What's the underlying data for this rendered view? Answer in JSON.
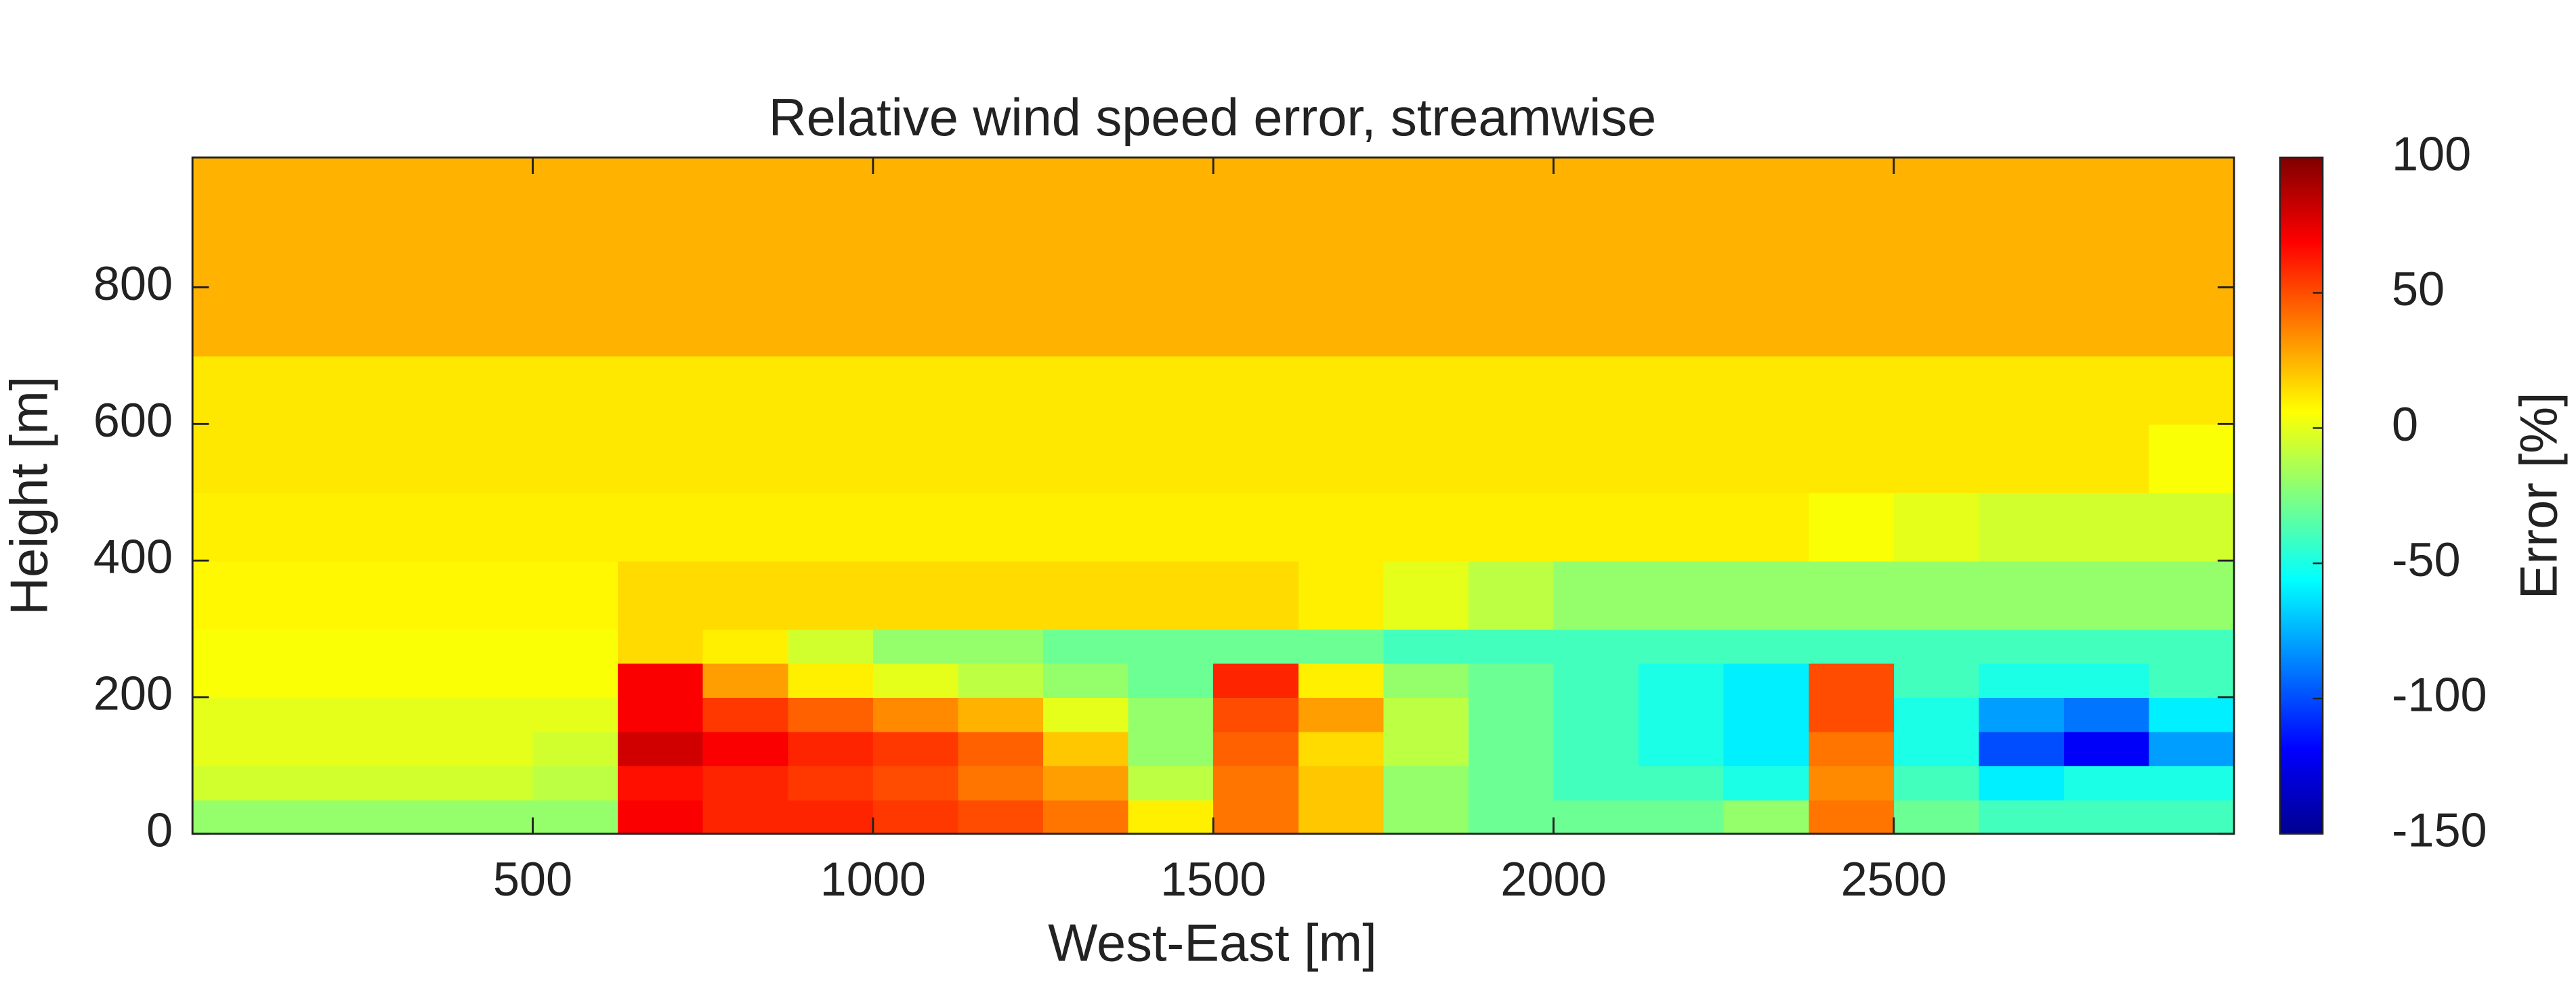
{
  "chart_data": {
    "type": "heatmap",
    "title": "Relative wind speed error, streamwise",
    "x_label": "West-East [m]",
    "y_label": "Height [m]",
    "xlim": [
      0,
      3000
    ],
    "ylim": [
      0,
      990
    ],
    "xticks": [
      500,
      1000,
      1500,
      2000,
      2500
    ],
    "yticks": [
      0,
      200,
      400,
      600,
      800
    ],
    "x_edges": [
      0,
      125,
      250,
      375,
      500,
      625,
      750,
      875,
      1000,
      1125,
      1250,
      1375,
      1500,
      1625,
      1750,
      1875,
      2000,
      2125,
      2250,
      2375,
      2500,
      2625,
      2750,
      2875,
      3000
    ],
    "y_edges": [
      0,
      50,
      100,
      150,
      200,
      250,
      300,
      400,
      500,
      600,
      700,
      800,
      990
    ],
    "z": [
      [
        -20,
        -20,
        -20,
        -20,
        -20,
        70,
        60,
        60,
        55,
        50,
        40,
        10,
        40,
        20,
        -20,
        -30,
        -30,
        -30,
        -20,
        40,
        -30,
        -40,
        -40,
        -40
      ],
      [
        -5,
        -5,
        -5,
        -5,
        -10,
        65,
        60,
        55,
        50,
        40,
        30,
        -10,
        40,
        20,
        -20,
        -30,
        -40,
        -40,
        -50,
        35,
        -40,
        -60,
        -50,
        -50
      ],
      [
        0,
        0,
        0,
        0,
        -5,
        80,
        70,
        60,
        55,
        45,
        20,
        -20,
        45,
        15,
        -10,
        -30,
        -40,
        -50,
        -60,
        40,
        -50,
        -100,
        -120,
        -80
      ],
      [
        0,
        0,
        0,
        0,
        0,
        70,
        55,
        45,
        35,
        25,
        0,
        -20,
        50,
        30,
        -10,
        -30,
        -40,
        -50,
        -60,
        50,
        -50,
        -80,
        -90,
        -60
      ],
      [
        5,
        5,
        5,
        5,
        5,
        70,
        30,
        10,
        0,
        -10,
        -20,
        -30,
        60,
        10,
        -20,
        -30,
        -40,
        -50,
        -60,
        50,
        -40,
        -50,
        -50,
        -40
      ],
      [
        5,
        5,
        5,
        5,
        5,
        15,
        10,
        -5,
        -20,
        -20,
        -30,
        -30,
        -30,
        -30,
        -40,
        -40,
        -40,
        -40,
        -40,
        -40,
        -40,
        -40,
        -40,
        -40
      ],
      [
        8,
        8,
        8,
        8,
        8,
        15,
        15,
        15,
        15,
        15,
        15,
        15,
        15,
        10,
        0,
        -10,
        -20,
        -20,
        -20,
        -20,
        -20,
        -20,
        -20,
        -20
      ],
      [
        10,
        10,
        10,
        10,
        10,
        10,
        10,
        10,
        10,
        10,
        10,
        10,
        10,
        10,
        10,
        10,
        10,
        10,
        10,
        5,
        0,
        -5,
        -5,
        -5
      ],
      [
        12,
        12,
        12,
        12,
        12,
        12,
        12,
        12,
        12,
        12,
        12,
        12,
        12,
        12,
        12,
        12,
        12,
        12,
        12,
        12,
        12,
        12,
        12,
        5
      ],
      [
        12,
        12,
        12,
        12,
        12,
        12,
        12,
        12,
        12,
        12,
        12,
        12,
        12,
        12,
        12,
        12,
        12,
        12,
        12,
        12,
        12,
        12,
        12,
        12
      ],
      [
        25,
        25,
        25,
        25,
        25,
        25,
        25,
        25,
        25,
        25,
        25,
        25,
        25,
        25,
        25,
        25,
        25,
        25,
        25,
        25,
        25,
        25,
        25,
        25
      ],
      [
        25,
        25,
        25,
        25,
        25,
        25,
        25,
        25,
        25,
        25,
        25,
        25,
        25,
        25,
        25,
        25,
        25,
        25,
        25,
        25,
        25,
        25,
        25,
        25
      ]
    ],
    "colormap": "jet",
    "colorbar": {
      "label": "Error [%]",
      "lim": [
        -150,
        100
      ],
      "ticks": [
        -150,
        -100,
        -50,
        0,
        50,
        100
      ]
    }
  }
}
